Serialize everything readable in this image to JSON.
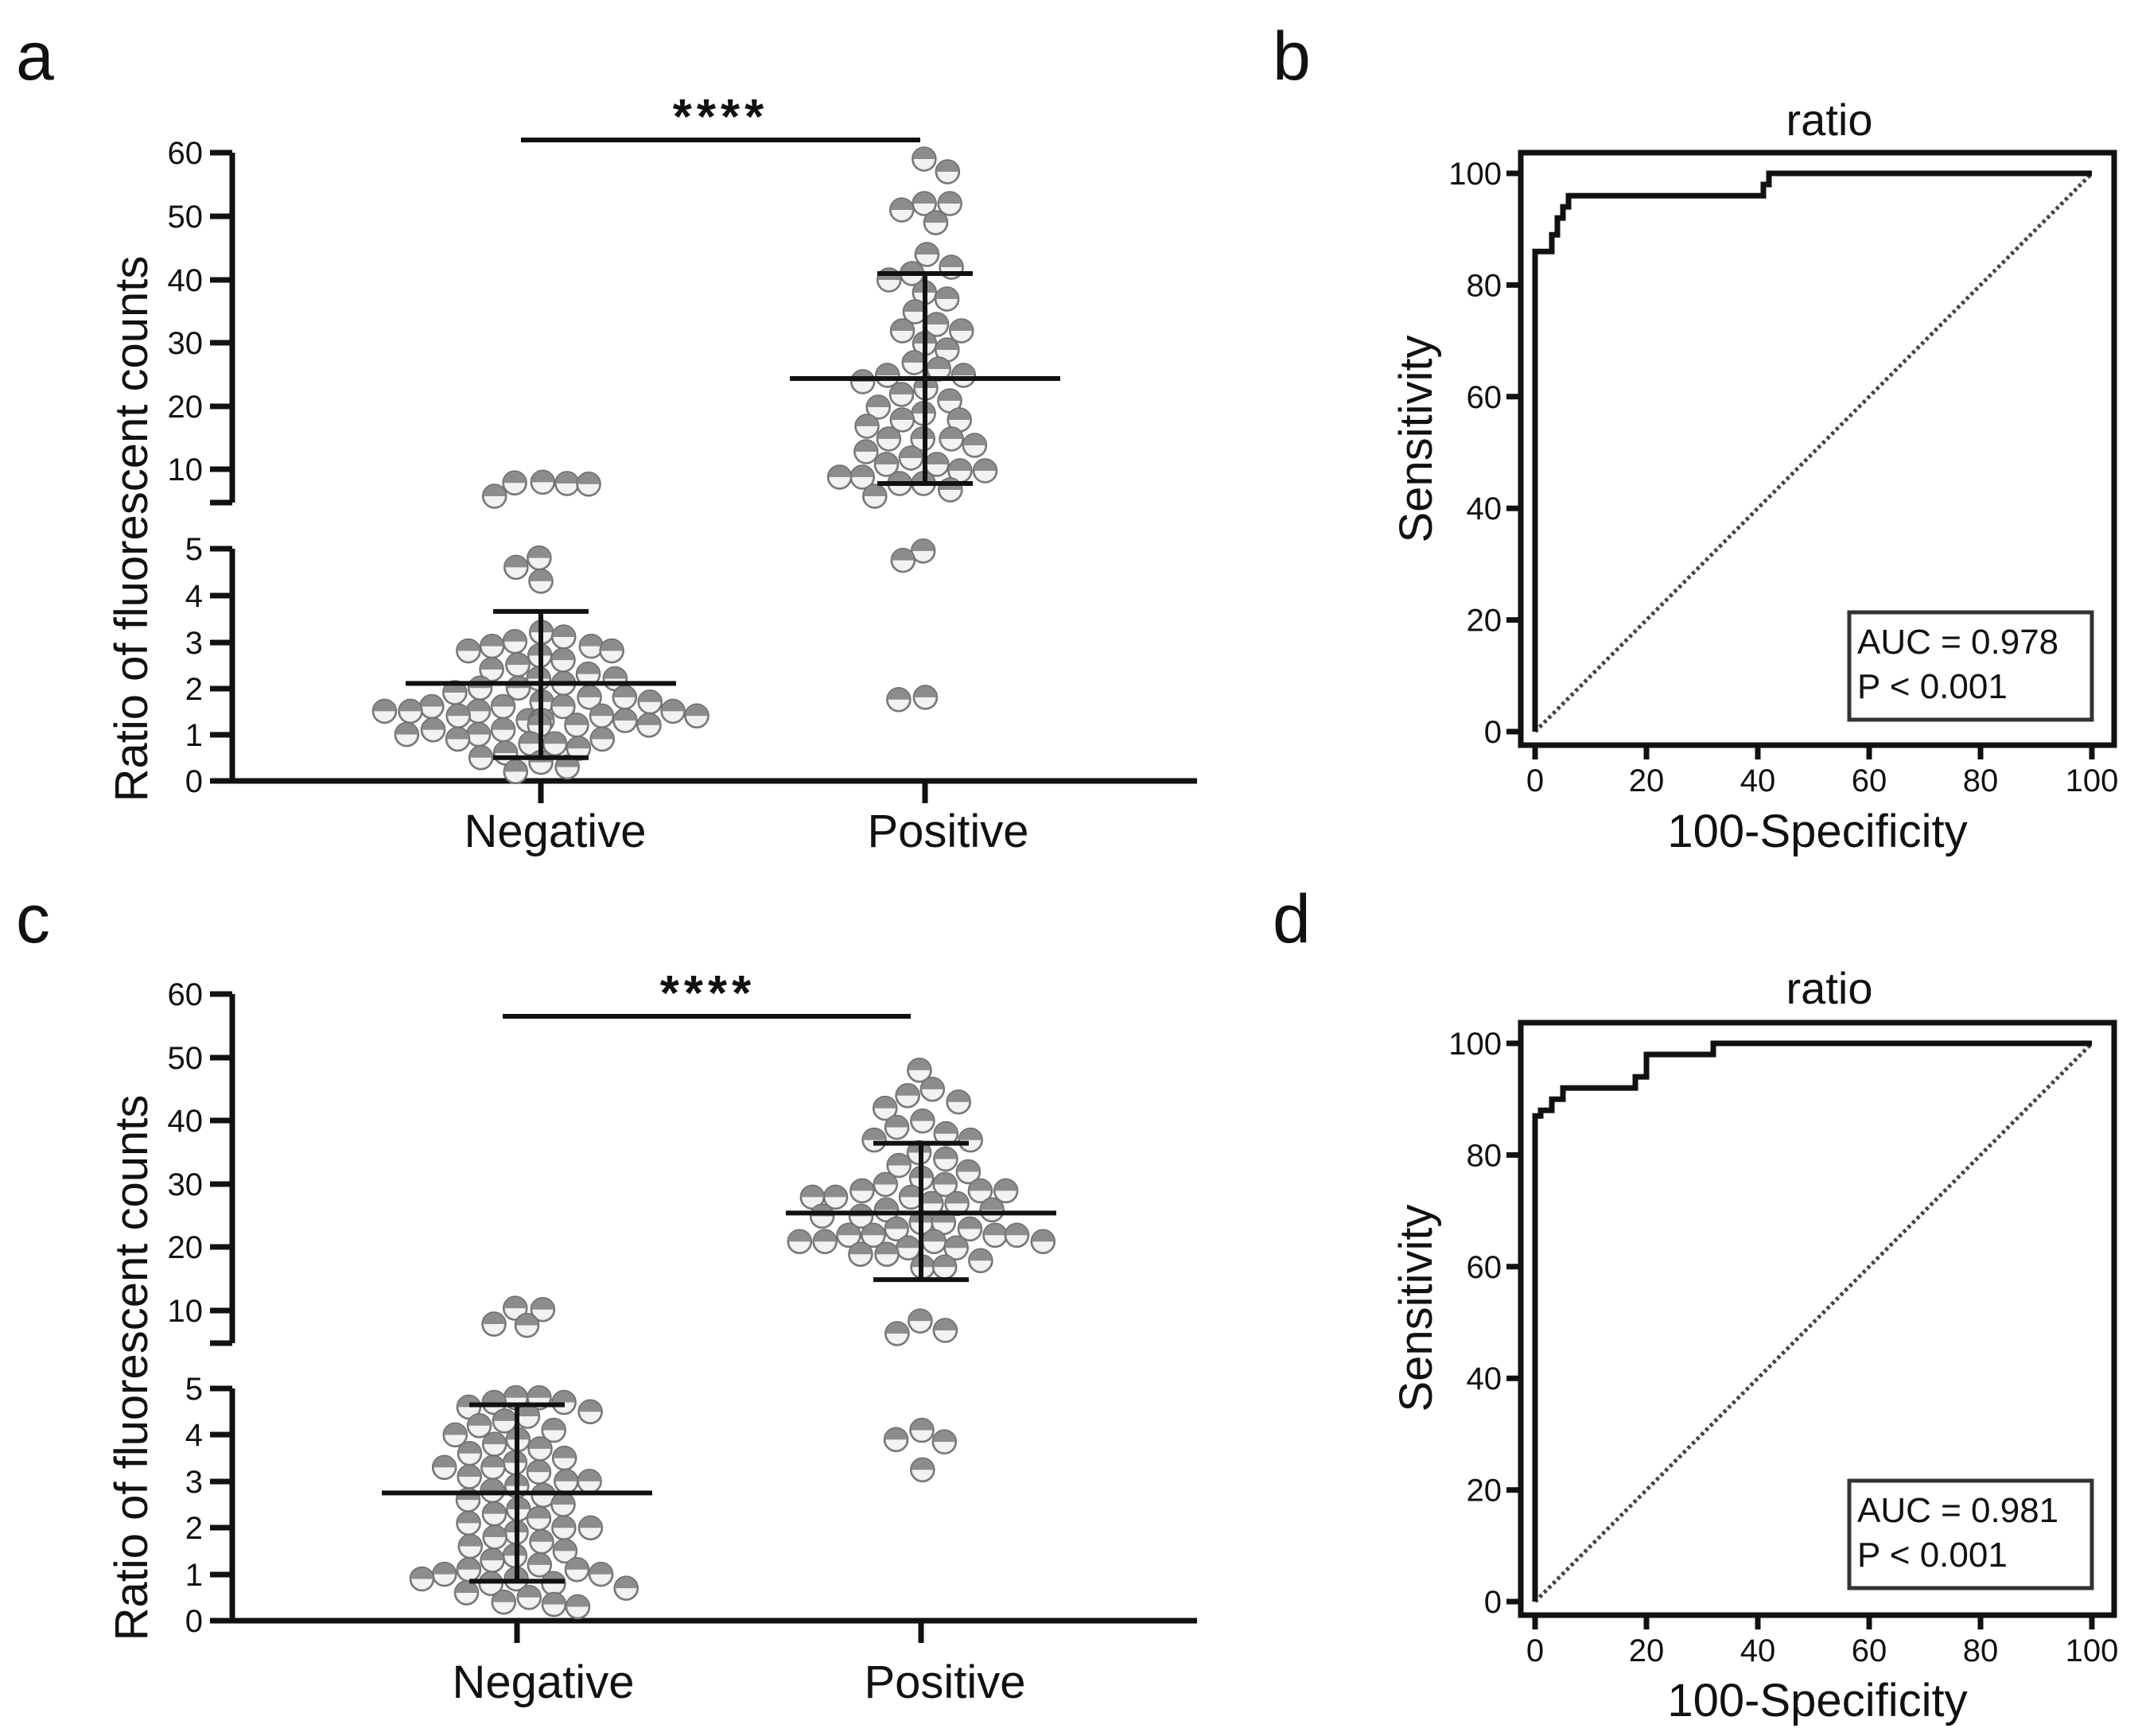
{
  "colors": {
    "dot": "#8c8c8c",
    "dot_light": "#f2f2f2",
    "axis": "#111111"
  },
  "chart_data": [
    {
      "type": "scatter",
      "panel": "a",
      "ylabel": "Ratio of fluorescent counts",
      "categories": [
        "Negative",
        "Positive"
      ],
      "y_ticks_lower": [
        "0",
        "1",
        "2",
        "3",
        "4",
        "5"
      ],
      "y_ticks_upper": [
        "10",
        "20",
        "30",
        "40",
        "50",
        "60"
      ],
      "significance": "****",
      "broken_axis": {
        "lower_range": [
          0,
          5
        ],
        "upper_range": [
          5,
          60
        ]
      },
      "series": [
        {
          "name": "Negative",
          "mean": 2.1,
          "sd_low": 0.5,
          "sd_high": 3.65,
          "values": [
            8.2,
            8.0,
            8.1,
            7.9,
            6.0,
            4.8,
            4.6,
            4.3,
            3.2,
            3.1,
            3.0,
            2.9,
            2.9,
            2.8,
            2.8,
            2.7,
            2.6,
            2.5,
            2.4,
            2.3,
            2.2,
            2.2,
            2.1,
            2.0,
            2.0,
            1.9,
            1.8,
            1.8,
            1.7,
            1.7,
            1.6,
            1.6,
            1.6,
            1.5,
            1.5,
            1.5,
            1.5,
            1.4,
            1.4,
            1.4,
            1.3,
            1.3,
            1.3,
            1.3,
            1.2,
            1.2,
            1.2,
            1.1,
            1.1,
            1.0,
            1.0,
            0.9,
            0.9,
            0.8,
            0.8,
            0.7,
            0.6,
            0.5,
            0.4,
            0.3,
            0.2
          ]
        },
        {
          "name": "Positive",
          "mean": 24.5,
          "sd_low": 8.0,
          "sd_high": 41.0,
          "values": [
            59,
            57,
            52,
            52,
            51,
            49,
            44,
            42,
            41,
            40,
            38,
            37,
            35,
            33,
            32,
            32,
            30,
            29,
            27,
            26,
            25,
            25,
            24,
            23,
            22,
            21,
            20,
            19,
            18,
            18,
            17,
            15,
            15,
            15,
            14,
            13,
            12,
            11,
            11,
            10,
            10,
            9,
            9,
            8,
            8,
            7,
            6,
            4.95,
            4.75,
            1.8,
            1.75
          ]
        }
      ]
    },
    {
      "type": "line",
      "panel": "b",
      "title": "ratio",
      "xlabel": "100-Specificity",
      "ylabel": "Sensitivity",
      "x_ticks": [
        "0",
        "20",
        "40",
        "60",
        "80",
        "100"
      ],
      "y_ticks": [
        "0",
        "20",
        "40",
        "60",
        "80",
        "100"
      ],
      "xlim": [
        0,
        100
      ],
      "ylim": [
        0,
        100
      ],
      "auc_text": "AUC = 0.978",
      "p_text": "P < 0.001",
      "x": [
        0,
        0,
        2,
        2,
        3,
        3,
        4,
        4,
        5,
        5,
        6,
        6,
        41,
        41,
        42,
        42,
        100
      ],
      "y": [
        0,
        86,
        86,
        86,
        86,
        89,
        89,
        92,
        92,
        94,
        94,
        96,
        96,
        98,
        98,
        100,
        100
      ]
    },
    {
      "type": "scatter",
      "panel": "c",
      "ylabel": "Ratio of fluorescent counts",
      "categories": [
        "Negative",
        "Positive"
      ],
      "y_ticks_lower": [
        "0",
        "1",
        "2",
        "3",
        "4",
        "5"
      ],
      "y_ticks_upper": [
        "10",
        "20",
        "30",
        "40",
        "50",
        "60"
      ],
      "significance": "****",
      "broken_axis": {
        "lower_range": [
          0,
          5
        ],
        "upper_range": [
          5,
          60
        ]
      },
      "series": [
        {
          "name": "Negative",
          "mean": 2.75,
          "sd_low": 0.85,
          "sd_high": 4.65,
          "values": [
            10.5,
            10.3,
            8.0,
            7.8,
            4.8,
            4.8,
            4.7,
            4.7,
            4.6,
            4.5,
            4.4,
            4.3,
            4.2,
            4.1,
            4.0,
            3.9,
            3.8,
            3.7,
            3.6,
            3.5,
            3.4,
            3.3,
            3.3,
            3.2,
            3.1,
            3.0,
            3.0,
            2.9,
            2.8,
            2.7,
            2.6,
            2.5,
            2.4,
            2.3,
            2.2,
            2.1,
            2.0,
            2.0,
            1.9,
            1.8,
            1.7,
            1.6,
            1.5,
            1.4,
            1.3,
            1.2,
            1.1,
            1.1,
            1.0,
            1.0,
            0.9,
            0.9,
            0.8,
            0.8,
            0.7,
            0.6,
            0.5,
            0.4,
            0.35,
            0.3
          ]
        },
        {
          "name": "Positive",
          "mean": 25.5,
          "sd_low": 15.0,
          "sd_high": 36.5,
          "values": [
            48,
            45,
            44,
            43,
            42,
            40,
            39,
            38,
            37,
            37,
            35,
            34,
            33,
            32,
            31,
            30,
            30,
            29,
            29,
            29,
            28,
            28,
            28,
            27,
            27,
            26,
            26,
            25,
            25,
            24,
            24,
            23,
            23,
            22,
            22,
            22,
            22,
            21,
            21,
            21,
            21,
            20,
            20,
            19,
            19,
            18,
            17,
            17,
            8.5,
            7.0,
            6.5,
            4.1,
            3.9,
            3.85,
            3.25
          ]
        }
      ]
    },
    {
      "type": "line",
      "panel": "d",
      "title": "ratio",
      "xlabel": "100-Specificity",
      "ylabel": "Sensitivity",
      "x_ticks": [
        "0",
        "20",
        "40",
        "60",
        "80",
        "100"
      ],
      "y_ticks": [
        "0",
        "20",
        "40",
        "60",
        "80",
        "100"
      ],
      "xlim": [
        0,
        100
      ],
      "ylim": [
        0,
        100
      ],
      "auc_text": "AUC = 0.981",
      "p_text": "P < 0.001",
      "x": [
        0,
        0,
        1,
        1,
        3,
        3,
        5,
        5,
        18,
        18,
        20,
        20,
        32,
        32,
        100
      ],
      "y": [
        0,
        87,
        87,
        88,
        88,
        90,
        90,
        92,
        92,
        94,
        94,
        98,
        98,
        100,
        100
      ]
    }
  ]
}
